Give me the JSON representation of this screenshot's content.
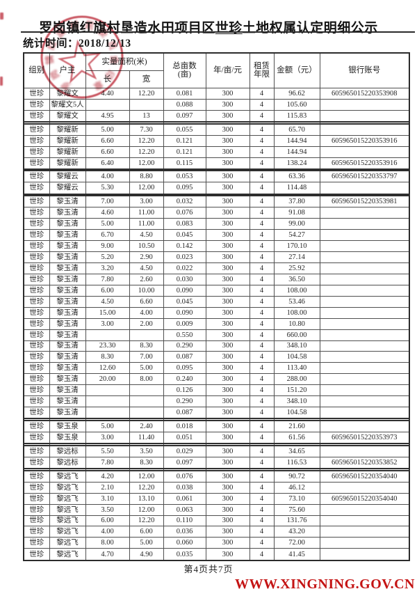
{
  "title": {
    "prefix": "罗岗镇红旗村垦造水田项目区",
    "underlined": "世珍",
    "suffix": "土地权属认定明细公示"
  },
  "stats": {
    "line": "统计时间：2018/12/13"
  },
  "table": {
    "headers": {
      "group": "组别",
      "owner": "户主",
      "measured_area": "实量面积(米)",
      "length": "长",
      "width": "宽",
      "mu_line1": "总亩数",
      "mu_line2": "(亩)",
      "price": "年/亩/元",
      "lease_line1": "租赁",
      "lease_line2": "年限",
      "amount": "金额（元）",
      "bank": "银行账号"
    },
    "rows": [
      {
        "g": "世珍",
        "n": "黎耀文",
        "l": "4.40",
        "w": "12.20",
        "m": "0.081",
        "p": "300",
        "y": "4",
        "a": "96.62",
        "b": "605965015220353908"
      },
      {
        "g": "世珍",
        "n": "黎耀文5人",
        "l": "",
        "w": "",
        "m": "0.088",
        "p": "300",
        "y": "4",
        "a": "105.60",
        "b": ""
      },
      {
        "g": "世珍",
        "n": "黎耀文",
        "l": "4.95",
        "w": "13",
        "m": "0.097",
        "p": "300",
        "y": "4",
        "a": "115.83",
        "b": ""
      },
      {
        "sep": true
      },
      {
        "g": "世珍",
        "n": "黎耀新",
        "l": "5.00",
        "w": "7.30",
        "m": "0.055",
        "p": "300",
        "y": "4",
        "a": "65.70",
        "b": ""
      },
      {
        "g": "世珍",
        "n": "黎耀新",
        "l": "6.60",
        "w": "12.20",
        "m": "0.121",
        "p": "300",
        "y": "4",
        "a": "144.94",
        "b": "605965015220353916"
      },
      {
        "g": "世珍",
        "n": "黎耀新",
        "l": "6.60",
        "w": "12.20",
        "m": "0.121",
        "p": "300",
        "y": "4",
        "a": "144.94",
        "b": ""
      },
      {
        "g": "世珍",
        "n": "黎耀新",
        "l": "6.40",
        "w": "12.00",
        "m": "0.115",
        "p": "300",
        "y": "4",
        "a": "138.24",
        "b": "605965015220353916"
      },
      {
        "sep": true
      },
      {
        "g": "世珍",
        "n": "黎耀云",
        "l": "4.00",
        "w": "8.80",
        "m": "0.053",
        "p": "300",
        "y": "4",
        "a": "63.36",
        "b": "605965015220353797"
      },
      {
        "g": "世珍",
        "n": "黎耀云",
        "l": "5.30",
        "w": "12.00",
        "m": "0.095",
        "p": "300",
        "y": "4",
        "a": "114.48",
        "b": ""
      },
      {
        "sep": true
      },
      {
        "g": "世珍",
        "n": "黎玉清",
        "l": "7.00",
        "w": "3.00",
        "m": "0.032",
        "p": "300",
        "y": "4",
        "a": "37.80",
        "b": "605965015220353981"
      },
      {
        "g": "世珍",
        "n": "黎玉清",
        "l": "4.60",
        "w": "11.00",
        "m": "0.076",
        "p": "300",
        "y": "4",
        "a": "91.08",
        "b": ""
      },
      {
        "g": "世珍",
        "n": "黎玉清",
        "l": "5.00",
        "w": "11.00",
        "m": "0.083",
        "p": "300",
        "y": "4",
        "a": "99.00",
        "b": ""
      },
      {
        "g": "世珍",
        "n": "黎玉清",
        "l": "6.70",
        "w": "4.50",
        "m": "0.045",
        "p": "300",
        "y": "4",
        "a": "54.27",
        "b": ""
      },
      {
        "g": "世珍",
        "n": "黎玉清",
        "l": "9.00",
        "w": "10.50",
        "m": "0.142",
        "p": "300",
        "y": "4",
        "a": "170.10",
        "b": ""
      },
      {
        "g": "世珍",
        "n": "黎玉清",
        "l": "5.20",
        "w": "2.90",
        "m": "0.023",
        "p": "300",
        "y": "4",
        "a": "27.14",
        "b": ""
      },
      {
        "g": "世珍",
        "n": "黎玉清",
        "l": "3.20",
        "w": "4.50",
        "m": "0.022",
        "p": "300",
        "y": "4",
        "a": "25.92",
        "b": ""
      },
      {
        "g": "世珍",
        "n": "黎玉清",
        "l": "7.80",
        "w": "2.60",
        "m": "0.030",
        "p": "300",
        "y": "4",
        "a": "36.50",
        "b": ""
      },
      {
        "g": "世珍",
        "n": "黎玉清",
        "l": "6.00",
        "w": "10.00",
        "m": "0.090",
        "p": "300",
        "y": "4",
        "a": "108.00",
        "b": ""
      },
      {
        "g": "世珍",
        "n": "黎玉清",
        "l": "4.50",
        "w": "6.60",
        "m": "0.045",
        "p": "300",
        "y": "4",
        "a": "53.46",
        "b": ""
      },
      {
        "g": "世珍",
        "n": "黎玉清",
        "l": "15.00",
        "w": "4.00",
        "m": "0.090",
        "p": "300",
        "y": "4",
        "a": "108.00",
        "b": ""
      },
      {
        "g": "世珍",
        "n": "黎玉清",
        "l": "3.00",
        "w": "2.00",
        "m": "0.009",
        "p": "300",
        "y": "4",
        "a": "10.80",
        "b": ""
      },
      {
        "g": "世珍",
        "n": "黎玉清",
        "l": "",
        "w": "",
        "m": "0.550",
        "p": "300",
        "y": "4",
        "a": "660.00",
        "b": ""
      },
      {
        "g": "世珍",
        "n": "黎玉清",
        "l": "23.30",
        "w": "8.30",
        "m": "0.290",
        "p": "300",
        "y": "4",
        "a": "348.10",
        "b": ""
      },
      {
        "g": "世珍",
        "n": "黎玉清",
        "l": "8.30",
        "w": "7.00",
        "m": "0.087",
        "p": "300",
        "y": "4",
        "a": "104.58",
        "b": ""
      },
      {
        "g": "世珍",
        "n": "黎玉清",
        "l": "12.60",
        "w": "5.00",
        "m": "0.095",
        "p": "300",
        "y": "4",
        "a": "113.40",
        "b": ""
      },
      {
        "g": "世珍",
        "n": "黎玉清",
        "l": "20.00",
        "w": "8.00",
        "m": "0.240",
        "p": "300",
        "y": "4",
        "a": "288.00",
        "b": ""
      },
      {
        "g": "世珍",
        "n": "黎玉清",
        "l": "",
        "w": "",
        "m": "0.126",
        "p": "300",
        "y": "4",
        "a": "151.20",
        "b": ""
      },
      {
        "g": "世珍",
        "n": "黎玉清",
        "l": "",
        "w": "",
        "m": "0.290",
        "p": "300",
        "y": "4",
        "a": "348.10",
        "b": ""
      },
      {
        "g": "世珍",
        "n": "黎玉清",
        "l": "",
        "w": "",
        "m": "0.087",
        "p": "300",
        "y": "4",
        "a": "104.58",
        "b": ""
      },
      {
        "sep": true
      },
      {
        "g": "世珍",
        "n": "黎玉泉",
        "l": "5.00",
        "w": "2.40",
        "m": "0.018",
        "p": "300",
        "y": "4",
        "a": "21.60",
        "b": ""
      },
      {
        "g": "世珍",
        "n": "黎玉泉",
        "l": "3.00",
        "w": "11.40",
        "m": "0.051",
        "p": "300",
        "y": "4",
        "a": "61.56",
        "b": "605965015220353973"
      },
      {
        "sep": true
      },
      {
        "g": "世珍",
        "n": "黎远标",
        "l": "5.50",
        "w": "3.50",
        "m": "0.029",
        "p": "300",
        "y": "4",
        "a": "34.65",
        "b": ""
      },
      {
        "g": "世珍",
        "n": "黎远标",
        "l": "7.80",
        "w": "8.30",
        "m": "0.097",
        "p": "300",
        "y": "4",
        "a": "116.53",
        "b": "605965015220353852"
      },
      {
        "sep": true
      },
      {
        "g": "世珍",
        "n": "黎远飞",
        "l": "4.20",
        "w": "12.00",
        "m": "0.076",
        "p": "300",
        "y": "4",
        "a": "90.72",
        "b": "605965015220354040"
      },
      {
        "g": "世珍",
        "n": "黎远飞",
        "l": "2.10",
        "w": "12.20",
        "m": "0.038",
        "p": "300",
        "y": "4",
        "a": "46.12",
        "b": ""
      },
      {
        "g": "世珍",
        "n": "黎远飞",
        "l": "3.10",
        "w": "13.10",
        "m": "0.061",
        "p": "300",
        "y": "4",
        "a": "73.10",
        "b": "605965015220354040"
      },
      {
        "g": "世珍",
        "n": "黎远飞",
        "l": "3.50",
        "w": "12.00",
        "m": "0.063",
        "p": "300",
        "y": "4",
        "a": "75.60",
        "b": ""
      },
      {
        "g": "世珍",
        "n": "黎远飞",
        "l": "6.00",
        "w": "12.20",
        "m": "0.110",
        "p": "300",
        "y": "4",
        "a": "131.76",
        "b": ""
      },
      {
        "g": "世珍",
        "n": "黎远飞",
        "l": "4.00",
        "w": "6.00",
        "m": "0.036",
        "p": "300",
        "y": "4",
        "a": "43.20",
        "b": ""
      },
      {
        "g": "世珍",
        "n": "黎远飞",
        "l": "8.00",
        "w": "5.00",
        "m": "0.060",
        "p": "300",
        "y": "4",
        "a": "72.00",
        "b": ""
      },
      {
        "g": "世珍",
        "n": "黎远飞",
        "l": "4.70",
        "w": "4.90",
        "m": "0.035",
        "p": "300",
        "y": "4",
        "a": "41.45",
        "b": ""
      }
    ]
  },
  "footer": {
    "page_info": "第4页共7页"
  },
  "watermark": {
    "text": "WWW.XINGNING.GOV.CN",
    "color": "#c41414"
  },
  "seal": {
    "color": "#c23a48",
    "ring_glyphs_illegible": [
      "罗",
      "岗",
      "镇",
      "红",
      "旗",
      "村",
      "民",
      "委",
      "员",
      "会",
      "印",
      "章"
    ]
  }
}
